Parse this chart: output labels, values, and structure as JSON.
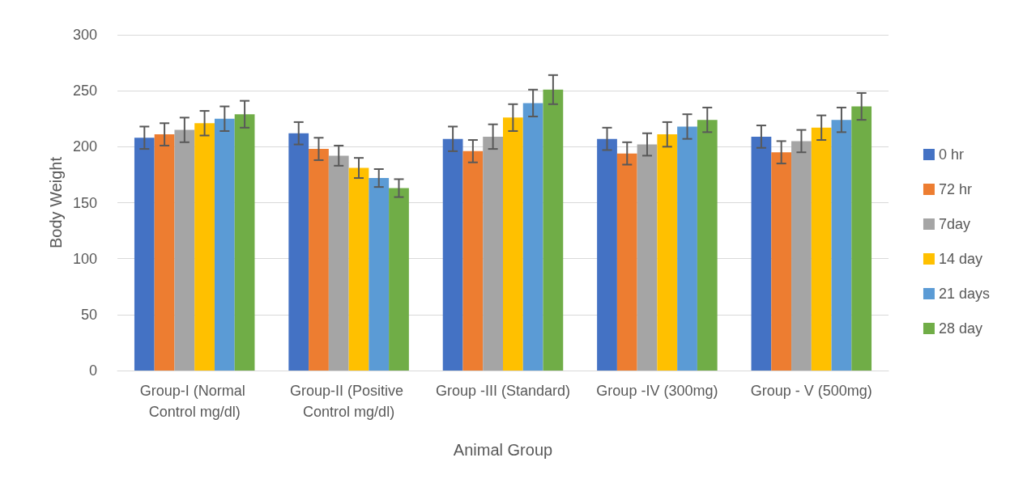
{
  "chart_data": {
    "type": "bar",
    "xlabel": "Animal Group",
    "ylabel": "Body Weight",
    "categories": [
      "Group-I (Normal Control mg/dl)",
      "Group-II (Positive Control mg/dl)",
      "Group -III (Standard)",
      "Group -IV (300mg)",
      "Group - V (500mg)"
    ],
    "series": [
      {
        "name": "0 hr",
        "color": "#4472c4",
        "values": [
          208,
          212,
          207,
          207,
          209
        ],
        "errors": [
          10,
          10,
          11,
          10,
          10
        ]
      },
      {
        "name": "72 hr",
        "color": "#ed7d31",
        "values": [
          211,
          198,
          196,
          194,
          195
        ],
        "errors": [
          10,
          10,
          10,
          10,
          10
        ]
      },
      {
        "name": "7day",
        "color": "#a5a5a5",
        "values": [
          215,
          192,
          209,
          202,
          205
        ],
        "errors": [
          11,
          9,
          11,
          10,
          10
        ]
      },
      {
        "name": "14 day",
        "color": "#ffc000",
        "values": [
          221,
          181,
          226,
          211,
          217
        ],
        "errors": [
          11,
          9,
          12,
          11,
          11
        ]
      },
      {
        "name": "21 days",
        "color": "#5b9bd5",
        "values": [
          225,
          172,
          239,
          218,
          224
        ],
        "errors": [
          11,
          8,
          12,
          11,
          11
        ]
      },
      {
        "name": "28 day",
        "color": "#70ad47",
        "values": [
          229,
          163,
          251,
          224,
          236
        ],
        "errors": [
          12,
          8,
          13,
          11,
          12
        ]
      }
    ],
    "ylim": [
      0,
      300
    ],
    "yticks": [
      0,
      50,
      100,
      150,
      200,
      250,
      300
    ],
    "grid": "y",
    "legend": "right"
  }
}
